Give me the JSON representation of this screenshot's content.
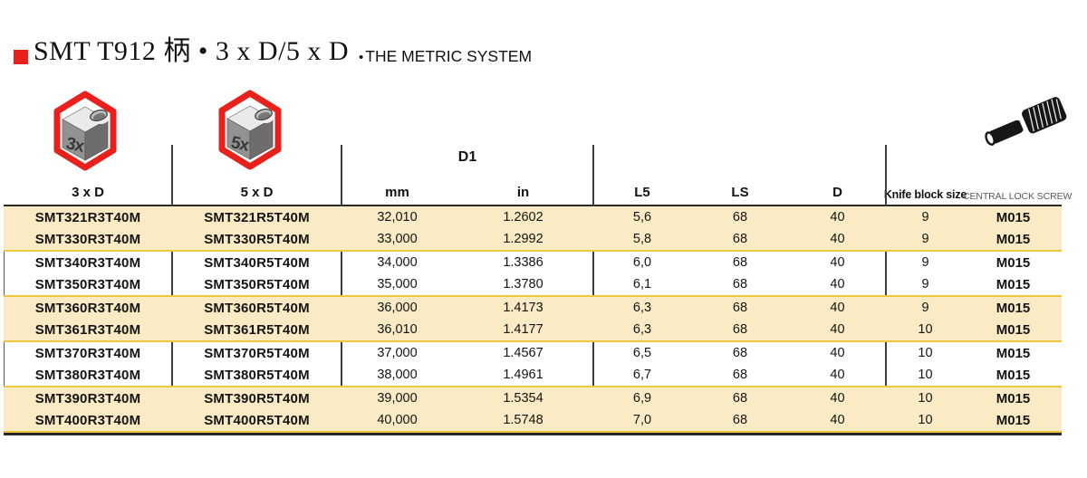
{
  "title": {
    "main": "SMT T912 柄 • 3 x D/5 x D",
    "bullet": "•",
    "system": "THE METRIC SYSTEM"
  },
  "icons": {
    "three_x_label": "3x",
    "five_x_label": "5x"
  },
  "table": {
    "d1_group_label": "D1",
    "headers": [
      "3 x D",
      "5 x D",
      "mm",
      "in",
      "L5",
      "LS",
      "D",
      "Knife block size",
      "CENTRAL LOCK SCREW"
    ],
    "rows": [
      [
        "SMT321R3T40M",
        "SMT321R5T40M",
        "32,010",
        "1.2602",
        "5,6",
        "68",
        "40",
        "9",
        "M015"
      ],
      [
        "SMT330R3T40M",
        "SMT330R5T40M",
        "33,000",
        "1.2992",
        "5,8",
        "68",
        "40",
        "9",
        "M015"
      ],
      [
        "SMT340R3T40M",
        "SMT340R5T40M",
        "34,000",
        "1.3386",
        "6,0",
        "68",
        "40",
        "9",
        "M015"
      ],
      [
        "SMT350R3T40M",
        "SMT350R5T40M",
        "35,000",
        "1.3780",
        "6,1",
        "68",
        "40",
        "9",
        "M015"
      ],
      [
        "SMT360R3T40M",
        "SMT360R5T40M",
        "36,000",
        "1.4173",
        "6,3",
        "68",
        "40",
        "9",
        "M015"
      ],
      [
        "SMT361R3T40M",
        "SMT361R5T40M",
        "36,010",
        "1.4177",
        "6,3",
        "68",
        "40",
        "10",
        "M015"
      ],
      [
        "SMT370R3T40M",
        "SMT370R5T40M",
        "37,000",
        "1.4567",
        "6,5",
        "68",
        "40",
        "10",
        "M015"
      ],
      [
        "SMT380R3T40M",
        "SMT380R5T40M",
        "38,000",
        "1.4961",
        "6,7",
        "68",
        "40",
        "10",
        "M015"
      ],
      [
        "SMT390R3T40M",
        "SMT390R5T40M",
        "39,000",
        "1.5354",
        "6,9",
        "68",
        "40",
        "10",
        "M015"
      ],
      [
        "SMT400R3T40M",
        "SMT400R5T40M",
        "40,000",
        "1.5748",
        "7,0",
        "68",
        "40",
        "10",
        "M015"
      ]
    ]
  },
  "colors": {
    "accent": "#e8211d",
    "row_band": "#faebc4",
    "pair_divider": "#efc63c",
    "rule": "#282828",
    "secondary_text": "#5a5a5a"
  }
}
